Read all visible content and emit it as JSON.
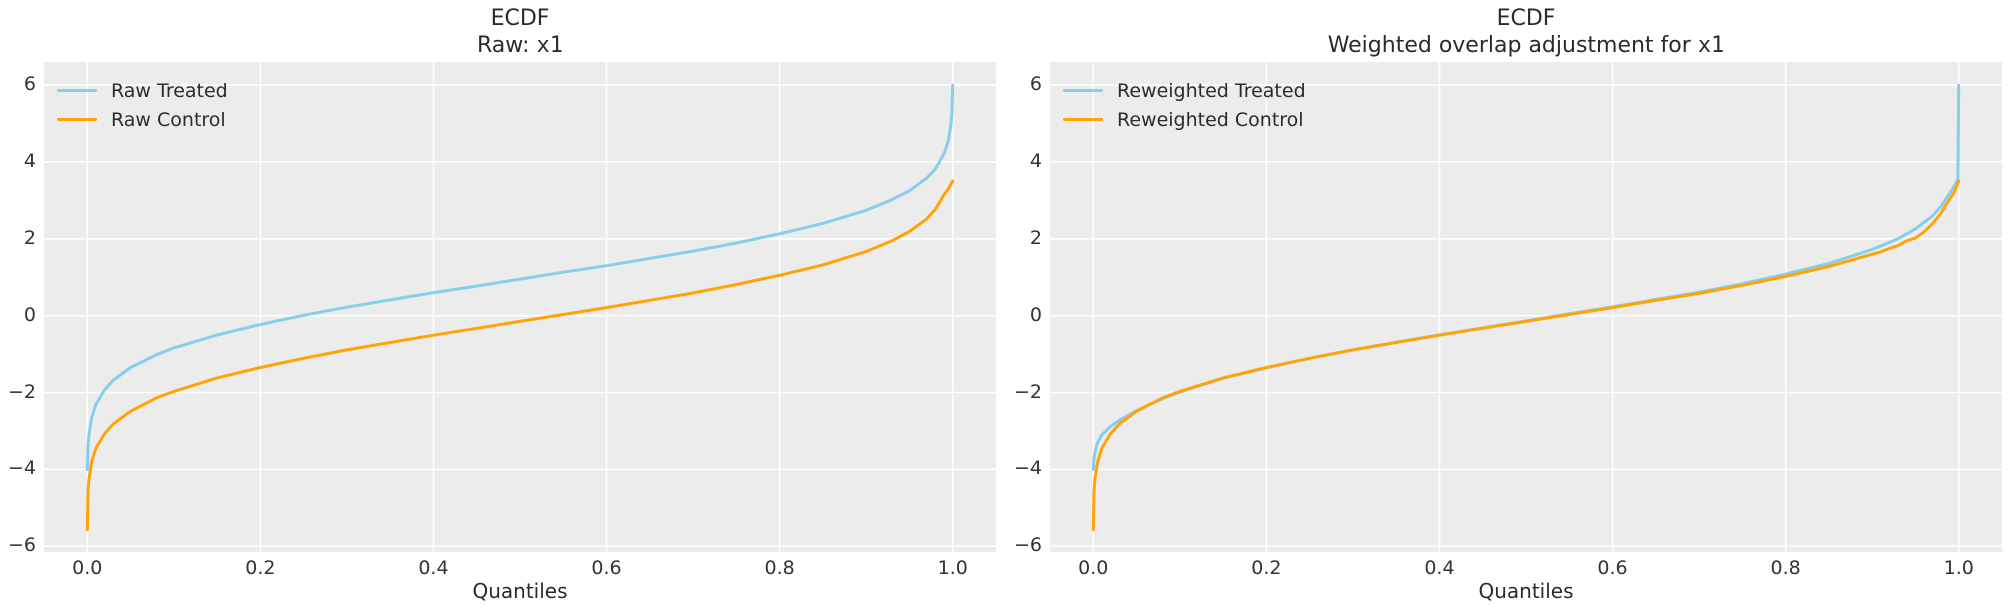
{
  "figure": {
    "background": "#ffffff",
    "axes_background": "#ececec",
    "grid_color": "#ffffff",
    "text_color": "#2b2b2b",
    "treated_color": "#87ceeb",
    "control_color": "#ffa408"
  },
  "chart_data": [
    {
      "type": "line",
      "title": "ECDF",
      "subtitle_prefix": "Raw: ",
      "subtitle_var": "x1",
      "xlabel": "Quantiles",
      "ylabel": "",
      "xlim": [
        -0.05,
        1.05
      ],
      "ylim": [
        -6.15,
        6.6
      ],
      "grid": true,
      "legend_position": "upper left",
      "xticks": {
        "values": [
          0.0,
          0.2,
          0.4,
          0.6,
          0.8,
          1.0
        ],
        "labels": [
          "0.0",
          "0.2",
          "0.4",
          "0.6",
          "0.8",
          "1.0"
        ]
      },
      "yticks": {
        "values": [
          -6,
          -4,
          -2,
          0,
          2,
          4,
          6
        ],
        "labels": [
          "−6",
          "−4",
          "−2",
          "0",
          "2",
          "4",
          "6"
        ]
      },
      "series": [
        {
          "name": "Raw Treated",
          "color": "#87ceeb",
          "x": [
            0,
            0.001,
            0.002,
            0.005,
            0.01,
            0.02,
            0.03,
            0.05,
            0.08,
            0.1,
            0.15,
            0.2,
            0.25,
            0.3,
            0.35,
            0.4,
            0.45,
            0.5,
            0.55,
            0.6,
            0.65,
            0.7,
            0.75,
            0.8,
            0.85,
            0.9,
            0.93,
            0.95,
            0.97,
            0.98,
            0.99,
            0.995,
            0.998,
            0.999,
            1.0
          ],
          "y": [
            -4.0,
            -3.38,
            -3.08,
            -2.66,
            -2.31,
            -1.93,
            -1.68,
            -1.35,
            -1.02,
            -0.84,
            -0.5,
            -0.23,
            0.01,
            0.22,
            0.41,
            0.6,
            0.77,
            0.95,
            1.13,
            1.3,
            1.49,
            1.68,
            1.89,
            2.13,
            2.4,
            2.74,
            3.02,
            3.25,
            3.58,
            3.82,
            4.21,
            4.56,
            4.98,
            5.28,
            6.0
          ]
        },
        {
          "name": "Raw Control",
          "color": "#ffa408",
          "x": [
            0,
            0.001,
            0.002,
            0.005,
            0.01,
            0.02,
            0.03,
            0.05,
            0.08,
            0.1,
            0.15,
            0.2,
            0.25,
            0.3,
            0.35,
            0.4,
            0.45,
            0.5,
            0.55,
            0.6,
            0.65,
            0.7,
            0.75,
            0.8,
            0.85,
            0.9,
            0.93,
            0.95,
            0.97,
            0.98,
            0.99,
            0.995,
            0.998,
            0.999,
            1.0
          ],
          "y": [
            -5.57,
            -4.54,
            -4.24,
            -3.81,
            -3.45,
            -3.07,
            -2.82,
            -2.49,
            -2.14,
            -1.97,
            -1.62,
            -1.35,
            -1.11,
            -0.89,
            -0.7,
            -0.51,
            -0.33,
            -0.15,
            0.03,
            0.21,
            0.4,
            0.59,
            0.81,
            1.05,
            1.32,
            1.67,
            1.95,
            2.19,
            2.52,
            2.77,
            3.15,
            3.3,
            3.42,
            3.46,
            3.5
          ]
        }
      ]
    },
    {
      "type": "line",
      "title": "ECDF",
      "subtitle_prefix": "Weighted overlap adjustment for ",
      "subtitle_var": "x1",
      "xlabel": "Quantiles",
      "ylabel": "",
      "xlim": [
        -0.05,
        1.05
      ],
      "ylim": [
        -6.15,
        6.6
      ],
      "grid": true,
      "legend_position": "upper left",
      "xticks": {
        "values": [
          0.0,
          0.2,
          0.4,
          0.6,
          0.8,
          1.0
        ],
        "labels": [
          "0.0",
          "0.2",
          "0.4",
          "0.6",
          "0.8",
          "1.0"
        ]
      },
      "yticks": {
        "values": [
          -6,
          -4,
          -2,
          0,
          2,
          4,
          6
        ],
        "labels": [
          "−6",
          "−4",
          "−2",
          "0",
          "2",
          "4",
          "6"
        ]
      },
      "series": [
        {
          "name": "Reweighted Treated",
          "color": "#87ceeb",
          "x": [
            0,
            0.001,
            0.002,
            0.005,
            0.01,
            0.02,
            0.03,
            0.05,
            0.08,
            0.1,
            0.15,
            0.2,
            0.25,
            0.3,
            0.35,
            0.4,
            0.45,
            0.5,
            0.55,
            0.6,
            0.65,
            0.7,
            0.75,
            0.8,
            0.85,
            0.9,
            0.93,
            0.95,
            0.97,
            0.98,
            0.99,
            0.995,
            0.998,
            0.999,
            1.0
          ],
          "y": [
            -4.0,
            -3.7,
            -3.55,
            -3.3,
            -3.1,
            -2.88,
            -2.72,
            -2.47,
            -2.16,
            -1.99,
            -1.63,
            -1.36,
            -1.11,
            -0.89,
            -0.69,
            -0.5,
            -0.32,
            -0.14,
            0.05,
            0.23,
            0.42,
            0.61,
            0.83,
            1.08,
            1.36,
            1.72,
            2.0,
            2.26,
            2.6,
            2.86,
            3.2,
            3.38,
            3.5,
            3.56,
            6.0
          ]
        },
        {
          "name": "Reweighted Control",
          "color": "#ffa408",
          "x": [
            0,
            0.001,
            0.002,
            0.005,
            0.01,
            0.02,
            0.03,
            0.05,
            0.08,
            0.1,
            0.15,
            0.2,
            0.25,
            0.3,
            0.35,
            0.4,
            0.45,
            0.5,
            0.55,
            0.6,
            0.65,
            0.7,
            0.75,
            0.8,
            0.85,
            0.9,
            0.91,
            0.92,
            0.93,
            0.94,
            0.95,
            0.96,
            0.97,
            0.98,
            0.985,
            0.99,
            0.995,
            0.998,
            1.0
          ],
          "y": [
            -5.57,
            -4.54,
            -4.24,
            -3.81,
            -3.45,
            -3.07,
            -2.82,
            -2.49,
            -2.14,
            -1.97,
            -1.62,
            -1.35,
            -1.11,
            -0.89,
            -0.7,
            -0.51,
            -0.33,
            -0.15,
            0.03,
            0.21,
            0.4,
            0.58,
            0.79,
            1.02,
            1.28,
            1.6,
            1.66,
            1.75,
            1.82,
            1.95,
            2.02,
            2.18,
            2.4,
            2.68,
            2.88,
            3.05,
            3.22,
            3.4,
            3.5
          ]
        }
      ]
    }
  ]
}
